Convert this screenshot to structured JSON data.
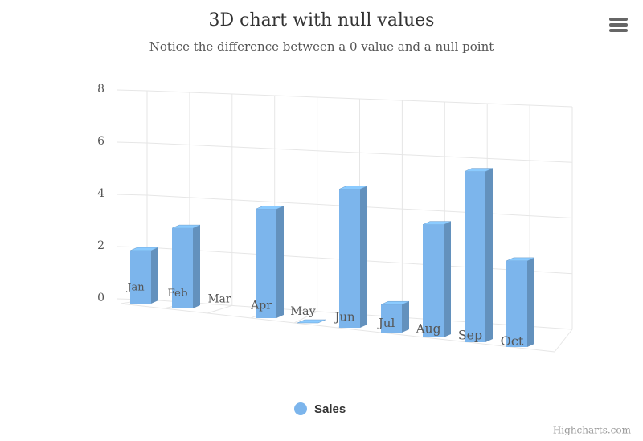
{
  "chart_data": {
    "type": "column3d",
    "title": "3D chart with null values",
    "subtitle": "Notice the difference between a 0 value and a null point",
    "categories": [
      "Jan",
      "Feb",
      "Mar",
      "Apr",
      "May",
      "Jun",
      "Jul",
      "Aug",
      "Sep",
      "Oct"
    ],
    "series": [
      {
        "name": "Sales",
        "color": "#7cb5ec",
        "values": [
          2,
          3,
          null,
          4,
          0,
          5,
          1,
          4,
          6,
          3
        ]
      }
    ],
    "ylim": [
      0,
      8
    ],
    "yticks": [
      0,
      2,
      4,
      6,
      8
    ],
    "grid": true
  },
  "credits": "Highcharts.com"
}
